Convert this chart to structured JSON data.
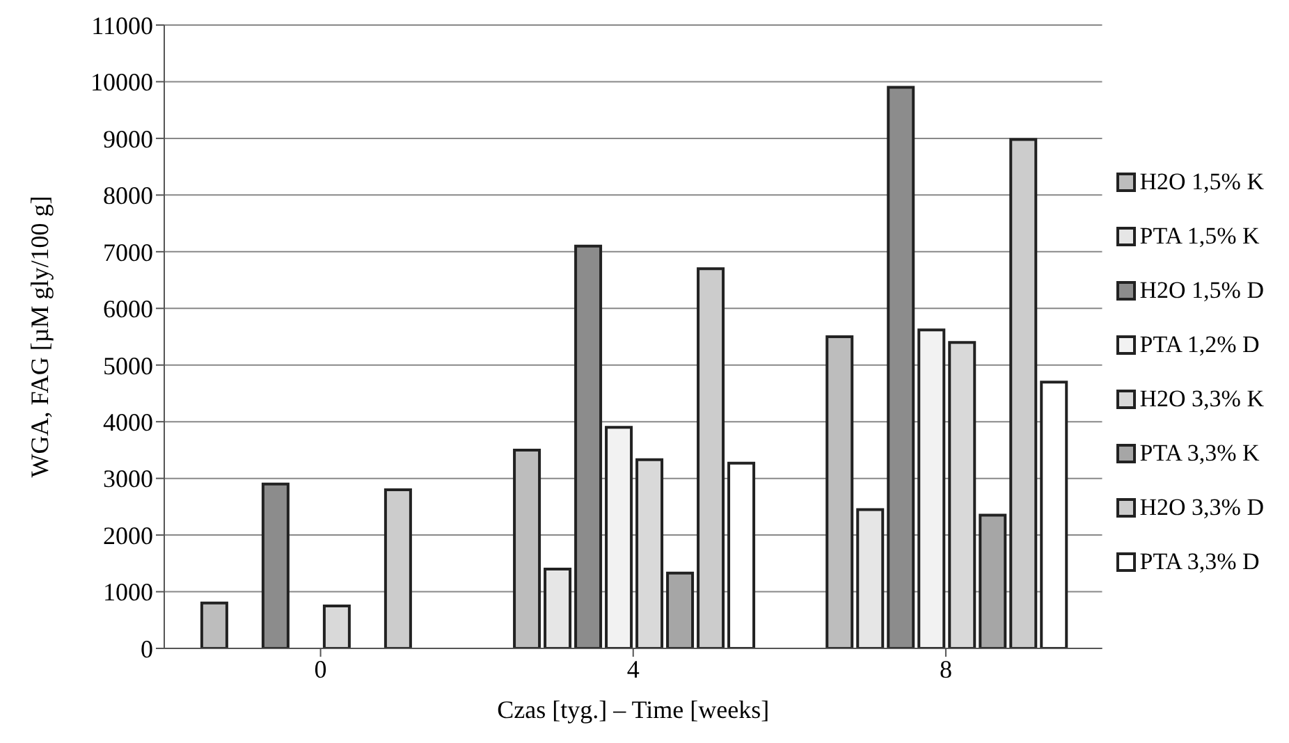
{
  "chart_data": {
    "type": "bar",
    "xlabel": "Czas [tyg.] – Time [weeks]",
    "ylabel": "WGA, FAG [µM gly/100 g]",
    "categories": [
      "0",
      "4",
      "8"
    ],
    "series": [
      {
        "name": "H2O 1,5% K",
        "color": "#bdbdbd",
        "values": [
          800,
          3500,
          5500
        ]
      },
      {
        "name": "PTA 1,5% K",
        "color": "#e6e6e6",
        "values": [
          null,
          1400,
          2450
        ]
      },
      {
        "name": "H2O 1,5% D",
        "color": "#8c8c8c",
        "values": [
          2900,
          7100,
          9900
        ]
      },
      {
        "name": "PTA 1,2% D",
        "color": "#f2f2f2",
        "values": [
          null,
          3900,
          5620
        ]
      },
      {
        "name": "H2O 3,3% K",
        "color": "#d9d9d9",
        "values": [
          750,
          3330,
          5400
        ]
      },
      {
        "name": "PTA 3,3% K",
        "color": "#a6a6a6",
        "values": [
          null,
          1330,
          2350
        ]
      },
      {
        "name": "H2O 3,3% D",
        "color": "#cccccc",
        "values": [
          2800,
          6700,
          8980
        ]
      },
      {
        "name": "PTA 3,3% D",
        "color": "#ffffff",
        "values": [
          null,
          3270,
          4700
        ]
      }
    ],
    "ylim": [
      0,
      11000
    ],
    "yticks": [
      0,
      1000,
      2000,
      3000,
      4000,
      5000,
      6000,
      7000,
      8000,
      9000,
      10000,
      11000
    ],
    "grid": "y",
    "legend": "right"
  }
}
